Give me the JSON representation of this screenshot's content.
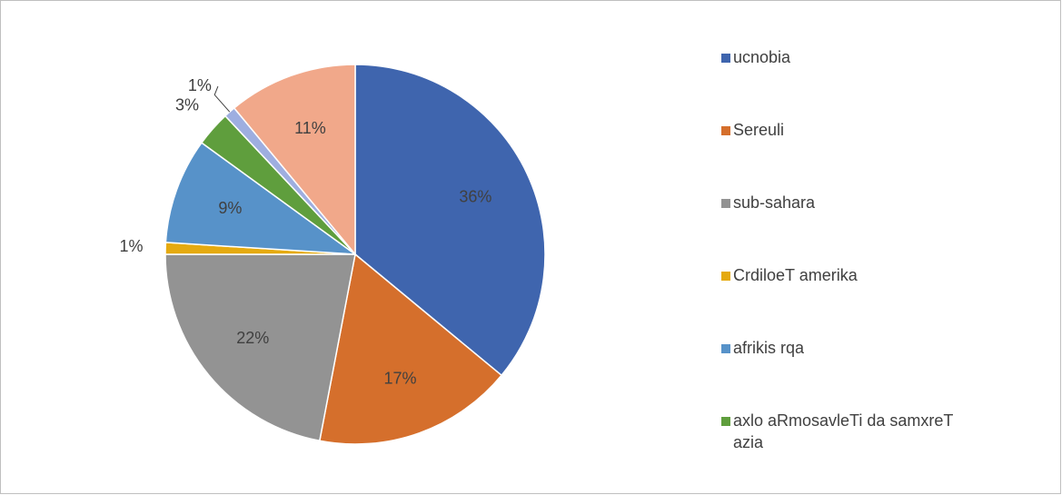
{
  "chart_data": {
    "type": "pie",
    "categories": [
      "ucnobia",
      "Sereuli",
      "sub-sahara",
      "CrdiloeT amerika",
      "afrikis rqa",
      "axlo aRmosavleTi da samxreT azia",
      null,
      null
    ],
    "values": [
      36,
      17,
      22,
      1,
      9,
      3,
      1,
      11
    ],
    "value_labels": [
      "36%",
      "17%",
      "22%",
      "1%",
      "9%",
      "3%",
      "1%",
      "11%"
    ],
    "colors": [
      "#3f65ae",
      "#d56f2c",
      "#939393",
      "#e5aa10",
      "#5792c9",
      "#5f9e3d",
      "#9eaee0",
      "#f1a88a"
    ]
  }
}
